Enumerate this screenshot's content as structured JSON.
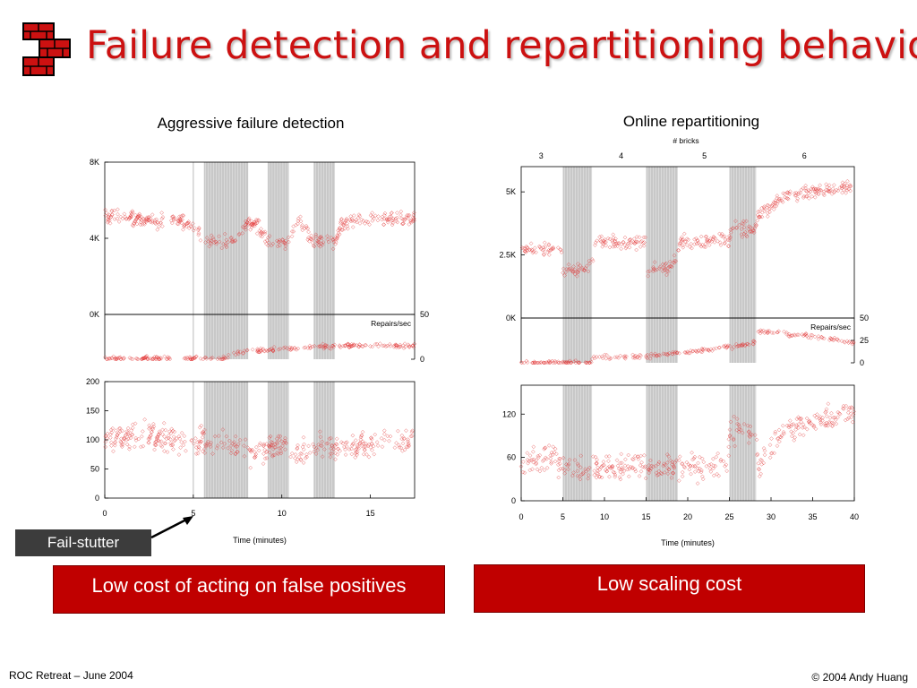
{
  "slide": {
    "title": "Failure detection and repartitioning behavior",
    "footer_left": "ROC Retreat – June 2004",
    "footer_right": "© 2004 Andy Huang",
    "callout": "Fail-stutter",
    "banner_left": "Low cost of acting on false positives",
    "banner_right": "Low scaling cost",
    "logo_icon": "red-brick-wall-icon"
  },
  "colors": {
    "title": "#cc1111",
    "data_points": "#e03030",
    "shade": "#c8c8c8",
    "banner": "#c00000",
    "callout": "#3c3c3c"
  },
  "chart_data": [
    {
      "title": "Aggressive failure detection",
      "type": "scatter",
      "xlabel": "Time (minutes)",
      "x_ticks": [
        "0",
        "5",
        "10",
        "15"
      ],
      "xlim": [
        0,
        17.5
      ],
      "marked_event": 5,
      "shaded_intervals": [
        [
          5.6,
          8.1
        ],
        [
          9.2,
          10.4
        ],
        [
          11.8,
          13.0
        ]
      ],
      "panels": [
        {
          "name": "top",
          "ylim": [
            0,
            8000
          ],
          "y_ticks": [
            "8K",
            "4K",
            "0K"
          ],
          "points": [
            [
              0,
              5100
            ],
            [
              1,
              5100
            ],
            [
              2,
              5000
            ],
            [
              3,
              4900
            ],
            [
              4,
              5000
            ],
            [
              5,
              4600
            ],
            [
              5.6,
              3900
            ],
            [
              6.5,
              3800
            ],
            [
              7.5,
              4000
            ],
            [
              8.1,
              4900
            ],
            [
              8.6,
              4700
            ],
            [
              9.2,
              3800
            ],
            [
              10.4,
              3800
            ],
            [
              10.9,
              4900
            ],
            [
              11.8,
              3900
            ],
            [
              13.0,
              3800
            ],
            [
              13.5,
              4900
            ],
            [
              15,
              5000
            ],
            [
              17.5,
              5000
            ]
          ]
        },
        {
          "name": "repairs",
          "secondary_label": "Repairs/sec",
          "ylim": [
            0,
            50
          ],
          "y2_ticks": [
            "50",
            "0"
          ],
          "points": [
            [
              0,
              1
            ],
            [
              6.8,
              1
            ],
            [
              7.2,
              6
            ],
            [
              9,
              10
            ],
            [
              12,
              14
            ],
            [
              14,
              15
            ],
            [
              17.5,
              15
            ]
          ]
        },
        {
          "name": "bottom",
          "ylim": [
            0,
            200
          ],
          "y_ticks": [
            "200",
            "150",
            "100",
            "50",
            "0"
          ],
          "points": [
            [
              0,
              100
            ],
            [
              2,
              110
            ],
            [
              4,
              100
            ],
            [
              5,
              100
            ],
            [
              6,
              95
            ],
            [
              7,
              90
            ],
            [
              8,
              80
            ],
            [
              9,
              80
            ],
            [
              10,
              95
            ],
            [
              11,
              75
            ],
            [
              12,
              90
            ],
            [
              13,
              85
            ],
            [
              15,
              95
            ],
            [
              17.5,
              100
            ]
          ]
        }
      ]
    },
    {
      "title": "Online repartitioning",
      "type": "scatter",
      "xlabel": "Time (minutes)",
      "x_ticks": [
        "0",
        "5",
        "10",
        "15",
        "20",
        "25",
        "30",
        "35",
        "40"
      ],
      "xlim": [
        0,
        40
      ],
      "top_axis_label": "# bricks",
      "top_axis_ticks": [
        {
          "x": 2.4,
          "label": "3"
        },
        {
          "x": 12,
          "label": "4"
        },
        {
          "x": 22,
          "label": "5"
        },
        {
          "x": 34,
          "label": "6"
        }
      ],
      "shaded_intervals": [
        [
          5.0,
          8.5
        ],
        [
          15.0,
          18.8
        ],
        [
          25.0,
          28.2
        ]
      ],
      "panels": [
        {
          "name": "top",
          "ylim": [
            0,
            6000
          ],
          "y_ticks": [
            "5K",
            "2.5K",
            "0K"
          ],
          "points": [
            [
              0,
              2700
            ],
            [
              4.9,
              2700
            ],
            [
              5,
              1900
            ],
            [
              7.2,
              1900
            ],
            [
              8.5,
              2300
            ],
            [
              9,
              3000
            ],
            [
              15,
              3000
            ],
            [
              15.2,
              1900
            ],
            [
              17.5,
              2000
            ],
            [
              18.8,
              2400
            ],
            [
              19,
              3000
            ],
            [
              25,
              3100
            ],
            [
              25.2,
              3600
            ],
            [
              28,
              3500
            ],
            [
              28.5,
              4000
            ],
            [
              32,
              4900
            ],
            [
              40,
              5200
            ]
          ]
        },
        {
          "name": "repairs",
          "secondary_label": "Repairs/sec",
          "ylim": [
            0,
            50
          ],
          "y2_ticks": [
            "50",
            "25",
            "0"
          ],
          "points": [
            [
              0,
              0
            ],
            [
              8.4,
              0
            ],
            [
              8.6,
              6
            ],
            [
              15,
              7
            ],
            [
              20,
              12
            ],
            [
              25,
              18
            ],
            [
              28,
              22
            ],
            [
              28.5,
              35
            ],
            [
              35,
              30
            ],
            [
              40,
              22
            ]
          ]
        },
        {
          "name": "bottom",
          "ylim": [
            0,
            160
          ],
          "y_ticks": [
            "120",
            "60",
            "0"
          ],
          "points": [
            [
              0,
              55
            ],
            [
              4,
              60
            ],
            [
              5,
              45
            ],
            [
              10,
              44
            ],
            [
              15,
              45
            ],
            [
              20,
              46
            ],
            [
              24.8,
              45
            ],
            [
              25,
              95
            ],
            [
              28,
              100
            ],
            [
              28.5,
              50
            ],
            [
              30,
              75
            ],
            [
              32,
              100
            ],
            [
              35,
              110
            ],
            [
              40,
              120
            ]
          ]
        }
      ]
    }
  ]
}
